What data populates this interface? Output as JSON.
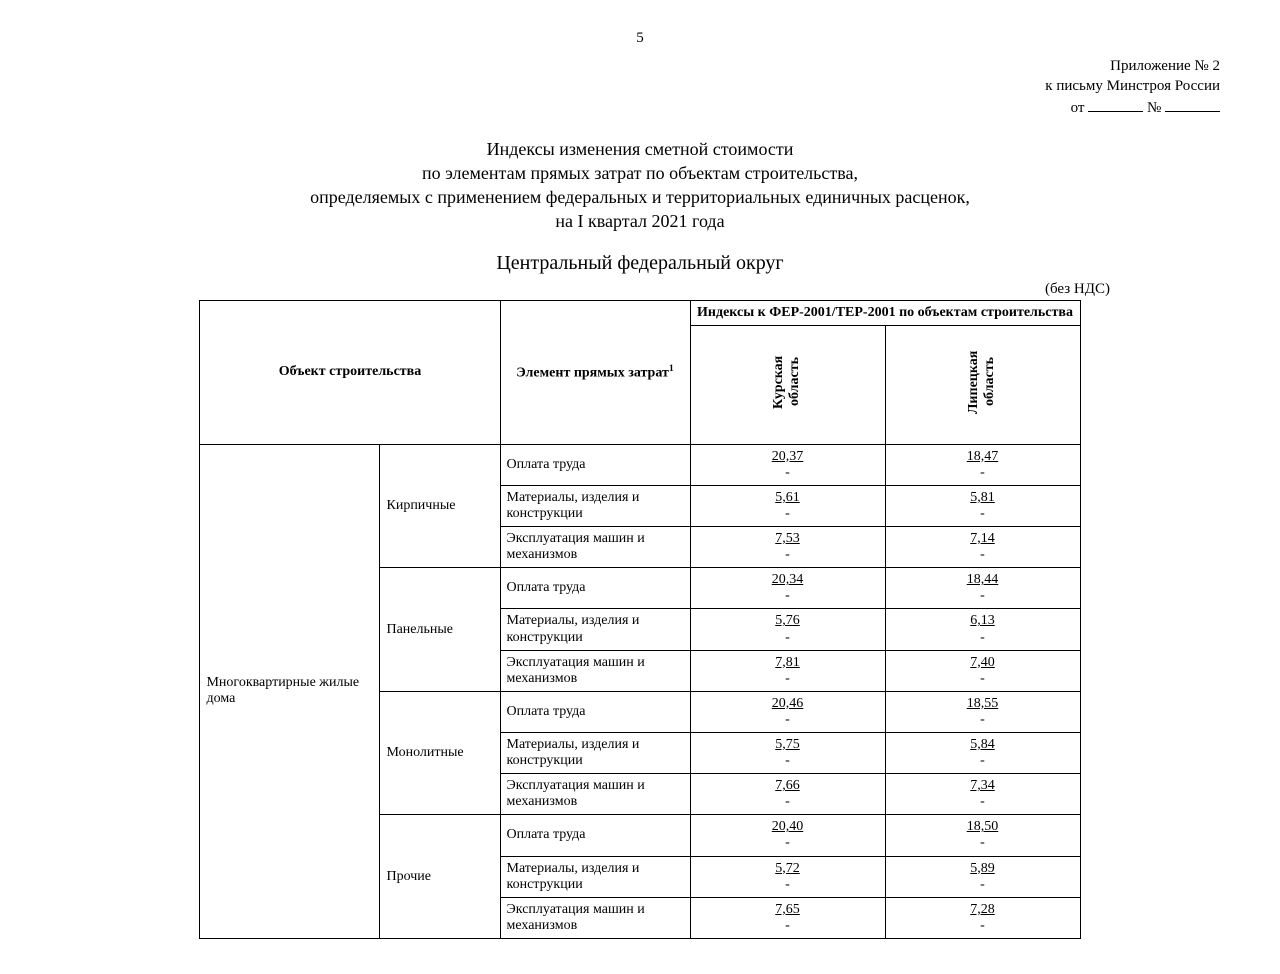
{
  "page_number": "5",
  "appendix": {
    "line1": "Приложение № 2",
    "line2": "к письму Минстроя России",
    "from_label": "от",
    "num_label": "№"
  },
  "title": {
    "l1": "Индексы изменения сметной стоимости",
    "l2": "по элементам прямых затрат по объектам строительства,",
    "l3": "определяемых с применением федеральных и территориальных единичных расценок,",
    "l4": "на I квартал 2021 года"
  },
  "region_title": "Центральный федеральный округ",
  "no_vat": "(без НДС)",
  "headers": {
    "object": "Объект строительства",
    "element": "Элемент прямых затрат",
    "element_sup": "1",
    "indices_group": "Индексы к ФЕР-2001/ТЕР-2001 по объектам строительства",
    "region1": "Курская область",
    "region2": "Липецкая область"
  },
  "dash": "-",
  "object_row": {
    "label": "Многоквартирные жилые дома",
    "subs": [
      {
        "label": "Кирпичные",
        "rows": [
          {
            "element": "Оплата труда",
            "v1": "20,37",
            "v2": "18,47"
          },
          {
            "element": "Материалы, изделия и конструкции",
            "v1": "5,61",
            "v2": "5,81"
          },
          {
            "element": "Эксплуатация машин и механизмов",
            "v1": "7,53",
            "v2": "7,14"
          }
        ]
      },
      {
        "label": "Панельные",
        "rows": [
          {
            "element": "Оплата труда",
            "v1": "20,34",
            "v2": "18,44"
          },
          {
            "element": "Материалы, изделия и конструкции",
            "v1": "5,76",
            "v2": "6,13"
          },
          {
            "element": "Эксплуатация машин и механизмов",
            "v1": "7,81",
            "v2": "7,40"
          }
        ]
      },
      {
        "label": "Монолитные",
        "rows": [
          {
            "element": "Оплата труда",
            "v1": "20,46",
            "v2": "18,55"
          },
          {
            "element": "Материалы, изделия и конструкции",
            "v1": "5,75",
            "v2": "5,84"
          },
          {
            "element": "Эксплуатация машин и механизмов",
            "v1": "7,66",
            "v2": "7,34"
          }
        ]
      },
      {
        "label": "Прочие",
        "rows": [
          {
            "element": "Оплата труда",
            "v1": "20,40",
            "v2": "18,50"
          },
          {
            "element": "Материалы, изделия и конструкции",
            "v1": "5,72",
            "v2": "5,89"
          },
          {
            "element": "Эксплуатация машин и механизмов",
            "v1": "7,65",
            "v2": "7,28"
          }
        ]
      }
    ]
  }
}
